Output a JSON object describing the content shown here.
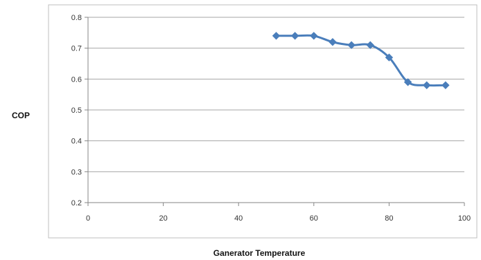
{
  "chart_data": {
    "type": "line",
    "title": "",
    "xlabel": "Ganerator Temperature",
    "ylabel": "COP",
    "xlim": [
      0,
      100
    ],
    "ylim": [
      0.2,
      0.8
    ],
    "x_ticks": [
      0,
      20,
      40,
      60,
      80,
      100
    ],
    "y_ticks": [
      0.2,
      0.3,
      0.4,
      0.5,
      0.6,
      0.7,
      0.8
    ],
    "x_tick_labels": [
      "0",
      "20",
      "40",
      "60",
      "80",
      "100"
    ],
    "y_tick_labels": [
      "0.2",
      "0.3",
      "0.4",
      "0.5",
      "0.6",
      "0.7",
      "0.8"
    ],
    "grid": "horizontal",
    "legend": "none",
    "series": [
      {
        "x": [
          50,
          55,
          60,
          65,
          70,
          75,
          80,
          85,
          90,
          95
        ],
        "y": [
          0.74,
          0.74,
          0.74,
          0.72,
          0.71,
          0.71,
          0.67,
          0.59,
          0.58,
          0.58
        ],
        "color": "#4a7ebb",
        "marker": "diamond",
        "smooth": true
      }
    ]
  }
}
